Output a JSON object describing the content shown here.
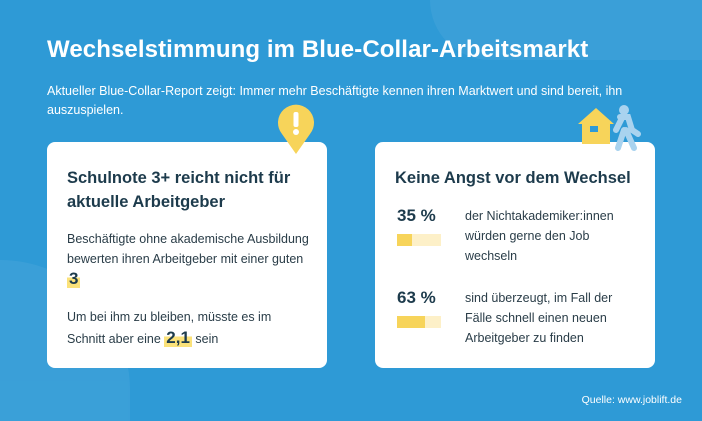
{
  "title": "Wechselstimmung im Blue-Collar-Arbeitsmarkt",
  "subtitle": "Aktueller Blue-Collar-Report zeigt: Immer mehr Beschäftigte kennen ihren Marktwert und sind bereit, ihn auszuspielen.",
  "card1": {
    "icon": "exclamation-pin-icon",
    "title": "Schulnote 3+ reicht nicht für aktuelle Arbeitgeber",
    "p1_text": "Beschäftigte ohne akademische Ausbildung bewerten ihren Arbeitgeber mit einer guten",
    "p1_value": "3",
    "p2_text": "Um bei ihm zu bleiben, müsste es im Schnitt aber eine",
    "p2_value": "2,1",
    "p2_suffix": "sein"
  },
  "card2": {
    "icon": "house-walking-person-icon",
    "title": "Keine Angst vor dem Wechsel",
    "stats": [
      {
        "label": "35 %",
        "value": 35,
        "text": "der Nichtakademiker:innen würden gerne den Job wechseln"
      },
      {
        "label": "63 %",
        "value": 63,
        "text": "sind überzeugt, im Fall der Fälle schnell einen neuen Arbeitgeber zu finden"
      }
    ]
  },
  "source": "Quelle: www.joblift.de",
  "colors": {
    "background": "#2e9ad6",
    "accent": "#f7d45a",
    "text": "#1d3b4c"
  }
}
